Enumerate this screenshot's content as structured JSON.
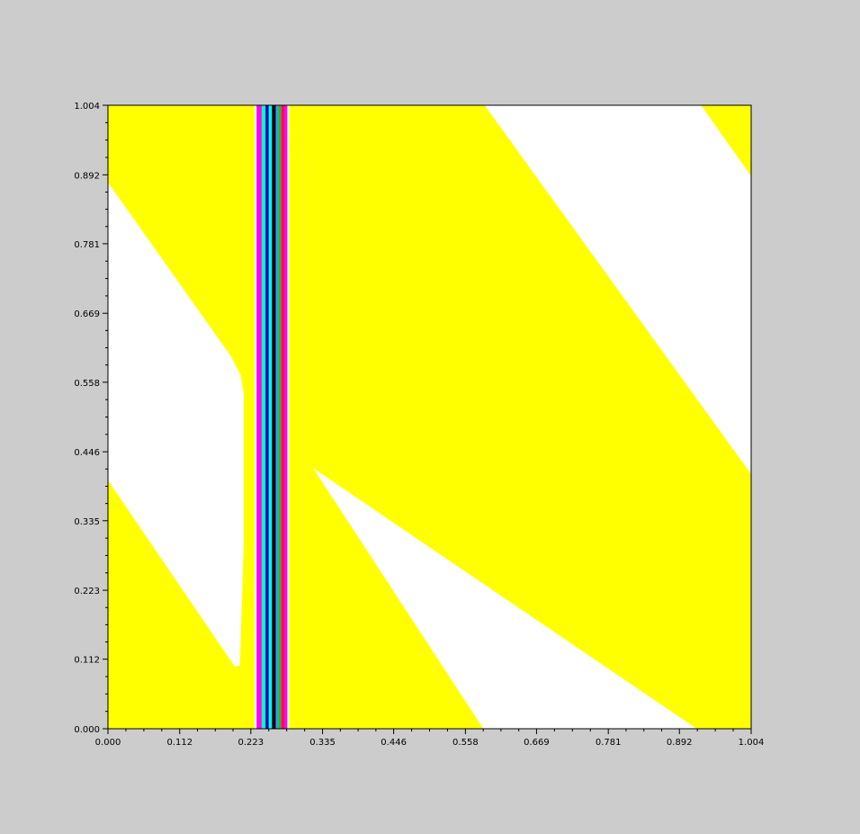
{
  "figure": {
    "background": "#cccccc"
  },
  "chart_data": {
    "type": "heatmap",
    "title": "",
    "xlabel": "",
    "ylabel": "",
    "xlim": [
      0.0,
      1.004
    ],
    "ylim": [
      0.0,
      1.004
    ],
    "grid": false,
    "legend": "none",
    "x_ticks": [
      "0.000",
      "0.112",
      "0.223",
      "0.335",
      "0.446",
      "0.558",
      "0.669",
      "0.781",
      "0.892",
      "1.004"
    ],
    "y_ticks": [
      "0.000",
      "0.112",
      "0.223",
      "0.335",
      "0.446",
      "0.558",
      "0.669",
      "0.781",
      "0.892",
      "1.004"
    ],
    "tick_values": [
      0.0,
      0.112,
      0.223,
      0.335,
      0.446,
      0.558,
      0.669,
      0.781,
      0.892,
      1.004
    ],
    "colors": {
      "high": "#ffff00",
      "low": "#ffffff",
      "axes": "#000000"
    },
    "regions": [
      {
        "name": "yellow-band-lower-left",
        "fill": "#ffff00",
        "polygon": [
          [
            0.0,
            0.0
          ],
          [
            0.0,
            0.4
          ],
          [
            0.198,
            0.1
          ],
          [
            0.206,
            0.102
          ],
          [
            0.212,
            0.3
          ],
          [
            0.212,
            0.54
          ],
          [
            0.207,
            0.57
          ],
          [
            0.192,
            0.6
          ],
          [
            0.0,
            0.88
          ],
          [
            0.0,
            1.004
          ],
          [
            0.588,
            1.004
          ],
          [
            1.004,
            0.41
          ],
          [
            1.004,
            0.0
          ],
          [
            0.919,
            0.0
          ],
          [
            0.318,
            0.42
          ],
          [
            0.31,
            0.44
          ],
          [
            0.307,
            0.5
          ],
          [
            0.307,
            0.86
          ],
          [
            0.312,
            0.885
          ],
          [
            0.318,
            0.9
          ],
          [
            0.326,
            0.9
          ],
          [
            0.334,
            0.89
          ],
          [
            0.588,
            1.004
          ],
          [
            0.586,
            0.0
          ]
        ]
      }
    ],
    "vertical_bands": [
      {
        "x0": 0.232,
        "x1": 0.239,
        "color": "#ff00ff"
      },
      {
        "x0": 0.239,
        "x1": 0.24,
        "color": "#ff0066"
      },
      {
        "x0": 0.24,
        "x1": 0.246,
        "color": "#00ffcc"
      },
      {
        "x0": 0.246,
        "x1": 0.251,
        "color": "#0000aa"
      },
      {
        "x0": 0.251,
        "x1": 0.256,
        "color": "#00ffff"
      },
      {
        "x0": 0.256,
        "x1": 0.262,
        "color": "#000000"
      },
      {
        "x0": 0.262,
        "x1": 0.266,
        "color": "#3399ff"
      },
      {
        "x0": 0.266,
        "x1": 0.27,
        "color": "#00cc00"
      },
      {
        "x0": 0.27,
        "x1": 0.276,
        "color": "#ff0066"
      },
      {
        "x0": 0.276,
        "x1": 0.28,
        "color": "#ff00ff"
      }
    ]
  }
}
